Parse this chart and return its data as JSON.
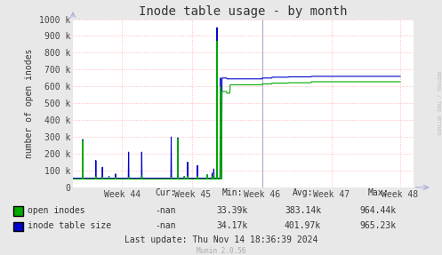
{
  "title": "Inode table usage - by month",
  "ylabel": "number of open inodes",
  "background_color": "#e8e8e8",
  "plot_bg_color": "#ffffff",
  "grid_color": "#ffaaaa",
  "week_labels": [
    "Week 44",
    "Week 45",
    "Week 46",
    "Week 47",
    "Week 48"
  ],
  "ylim": [
    0,
    1000000
  ],
  "yticks": [
    0,
    100000,
    200000,
    300000,
    400000,
    500000,
    600000,
    700000,
    800000,
    900000,
    1000000
  ],
  "ytick_labels": [
    "0",
    "100 k",
    "200 k",
    "300 k",
    "400 k",
    "500 k",
    "600 k",
    "700 k",
    "800 k",
    "900 k",
    "1000 k"
  ],
  "open_inodes_color": "#00aa00",
  "inode_table_color": "#0000cc",
  "vertical_line_color": "#aaaacc",
  "legend_entries": [
    "open inodes",
    "inode table size"
  ],
  "open_cur": "-nan",
  "open_min": "33.39k",
  "open_avg": "383.14k",
  "open_max": "964.44k",
  "table_cur": "-nan",
  "table_min": "34.17k",
  "table_avg": "401.97k",
  "table_max": "965.23k",
  "last_update": "Last update: Thu Nov 14 18:36:39 2024",
  "munin_label": "Munin 2.0.56",
  "rrdtool_label": "RRDTOOL / TOBI OETIKER",
  "title_fontsize": 10,
  "axis_label_fontsize": 7,
  "tick_fontsize": 7,
  "legend_fontsize": 7,
  "stats_fontsize": 7
}
